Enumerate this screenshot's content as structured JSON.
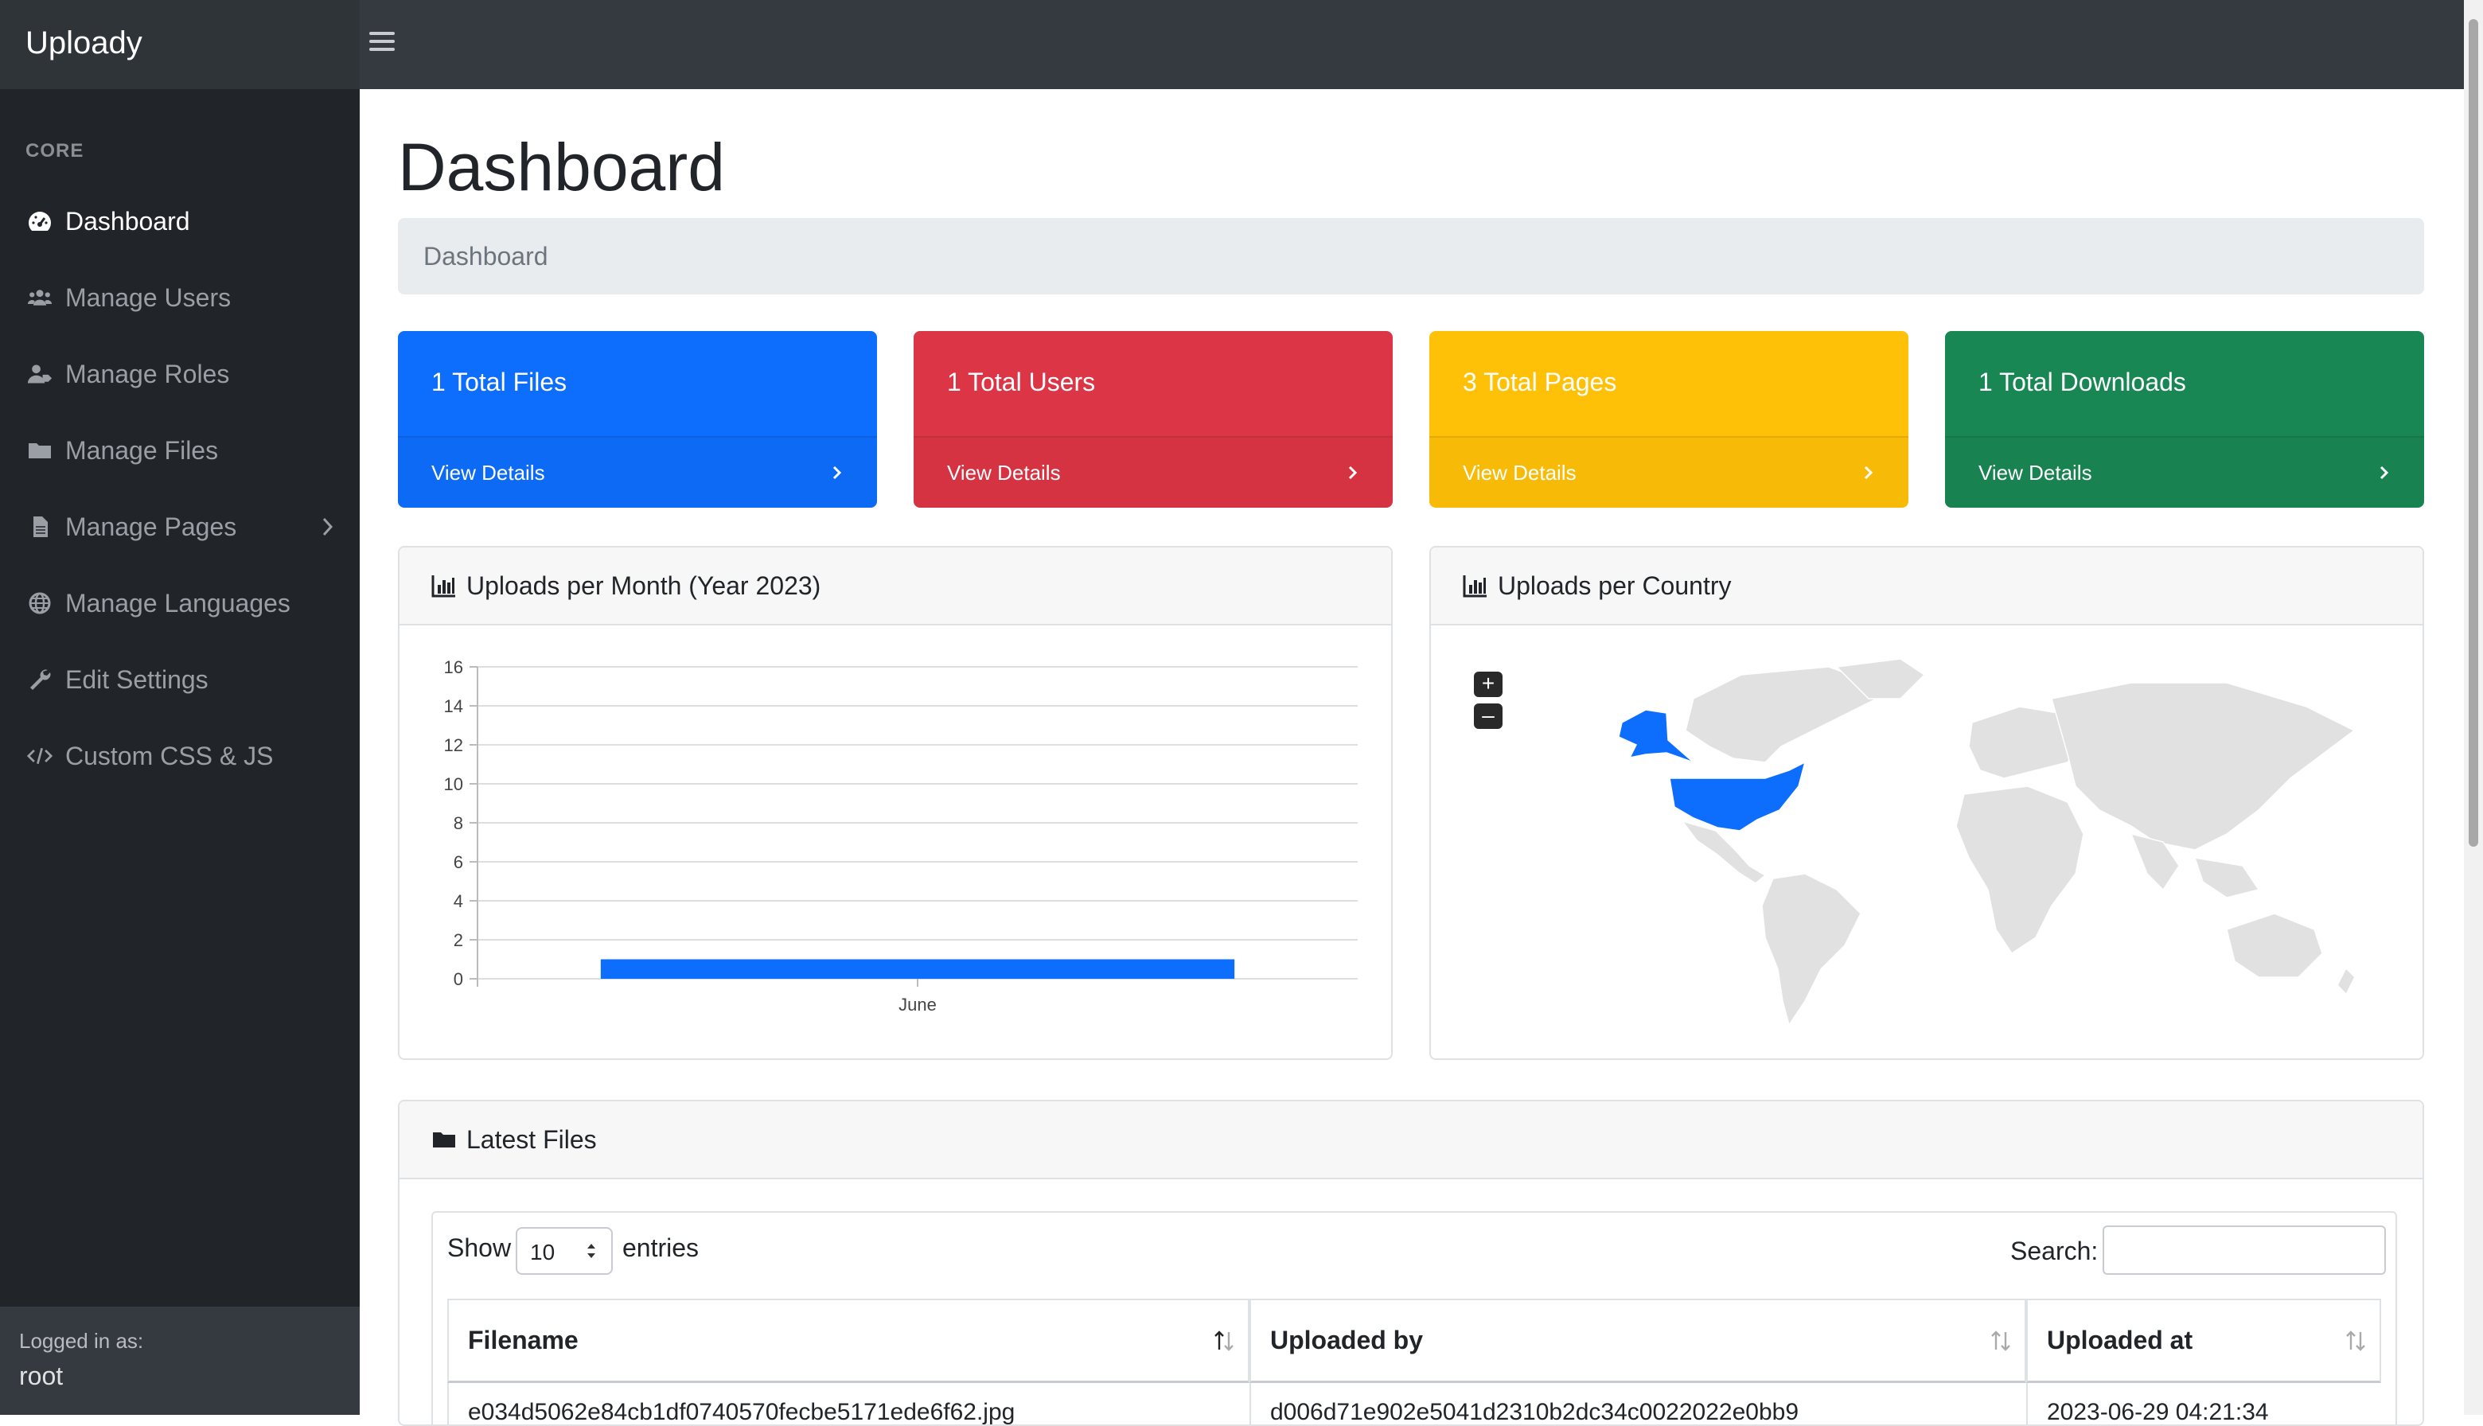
{
  "app": {
    "brand": "Uploady"
  },
  "sidebar": {
    "heading": "CORE",
    "items": [
      {
        "label": "Dashboard",
        "icon": "tachometer-icon"
      },
      {
        "label": "Manage Users",
        "icon": "users-icon"
      },
      {
        "label": "Manage Roles",
        "icon": "user-tag-icon"
      },
      {
        "label": "Manage Files",
        "icon": "folder-icon"
      },
      {
        "label": "Manage Pages",
        "icon": "file-icon"
      },
      {
        "label": "Manage Languages",
        "icon": "globe-icon"
      },
      {
        "label": "Edit Settings",
        "icon": "wrench-icon"
      },
      {
        "label": "Custom CSS & JS",
        "icon": "code-icon"
      }
    ],
    "footer": {
      "label": "Logged in as:",
      "user": "root"
    }
  },
  "main": {
    "title": "Dashboard",
    "breadcrumb": "Dashboard",
    "stats": [
      {
        "title": "1 Total Files",
        "link": "View Details",
        "color": "#0d6efd"
      },
      {
        "title": "1 Total Users",
        "link": "View Details",
        "color": "#dc3545"
      },
      {
        "title": "3 Total Pages",
        "link": "View Details",
        "color": "#ffc107"
      },
      {
        "title": "1 Total Downloads",
        "link": "View Details",
        "color": "#198754"
      }
    ],
    "chart_panel": {
      "title": "Uploads per Month (Year 2023)"
    },
    "map_panel": {
      "title": "Uploads per Country",
      "zoom_in": "+",
      "zoom_out": "–",
      "highlight_color": "#0d6efd",
      "highlighted": [
        "United States"
      ]
    },
    "files_panel": {
      "title": "Latest Files",
      "show": "Show",
      "length_value": "10",
      "entries": "entries",
      "search_label": "Search:",
      "columns": [
        "Filename",
        "Uploaded by",
        "Uploaded at"
      ],
      "rows": [
        [
          "e034d5062e84cb1df0740570fecbe5171ede6f62.jpg",
          "d006d71e902e5041d2310b2dc34c0022022e0bb9",
          "2023-06-29 04:21:34"
        ]
      ]
    }
  },
  "chart_data": {
    "type": "bar",
    "title": "Uploads per Month (Year 2023)",
    "categories": [
      "June"
    ],
    "series": [
      {
        "values": [
          1
        ]
      }
    ],
    "ylim": [
      0,
      16
    ],
    "yticks": [
      0,
      2,
      4,
      6,
      8,
      10,
      12,
      14,
      16
    ],
    "grid": true,
    "color": "#0d6efd"
  }
}
